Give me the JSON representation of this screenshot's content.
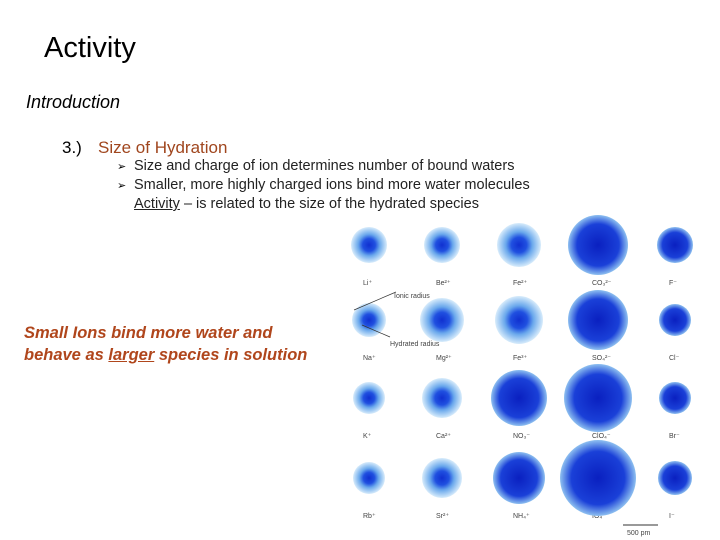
{
  "slide": {
    "title": "Activity",
    "section": "Introduction",
    "item": {
      "number": "3.)",
      "heading": "Size of Hydration",
      "bullets": [
        "Size and charge of ion determines number of bound waters",
        "Smaller, more highly charged ions bind more water molecules"
      ],
      "note": {
        "term": "Activity",
        "rest": " – is related to the size of the hydrated species"
      }
    },
    "callout": {
      "line1": "Small Ions bind more water and",
      "line2": [
        "behave as ",
        "larger",
        " species in solution"
      ]
    }
  },
  "figure": {
    "ions": [
      [
        "Li⁺",
        "Be²⁺",
        "Fe²⁺",
        "CO₃²⁻",
        "F⁻"
      ],
      [
        "Na⁺",
        "Mg²⁺",
        "Fe³⁺",
        "SO₄²⁻",
        "Cl⁻"
      ],
      [
        "K⁺",
        "Ca²⁺",
        "NO₃⁻",
        "ClO₄⁻",
        "Br⁻"
      ],
      [
        "Rb⁺",
        "Sr²⁺",
        "NH₄⁺",
        "IO₄⁻",
        "I⁻"
      ]
    ],
    "ionic_radius": "Ionic radius",
    "hydrated_radius": "Hydrated radius",
    "scale": "500 pm"
  }
}
